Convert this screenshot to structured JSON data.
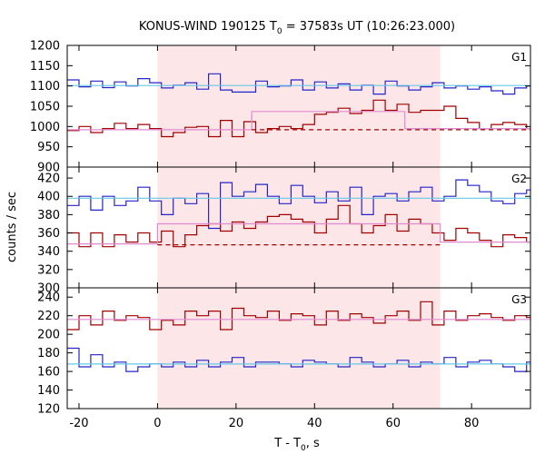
{
  "chart_data": {
    "type": "line",
    "title": "KONUS-WIND 190125 T",
    "title_sub": "0",
    "title_rest": " = 37583s UT (10:26:23.000)",
    "ylabel": "counts / sec",
    "xlabel_main": "T - T",
    "xlabel_sub": "0",
    "xlabel_unit": ", s",
    "xlim": [
      -23,
      95
    ],
    "x_ticks": [
      -20,
      0,
      20,
      40,
      60,
      80
    ],
    "x_tick_labels": [
      "-20",
      "0",
      "20",
      "40",
      "60",
      "80"
    ],
    "x_grid": false,
    "shaded_interval": [
      0,
      72
    ],
    "colors": {
      "shade": "#fde6e8",
      "blue": "#2424c8",
      "red": "#a00000",
      "cyan": "#64c8e6",
      "pink": "#e08ad0"
    },
    "bin_width": 3,
    "panels": [
      {
        "label": "G1",
        "ylim": [
          900,
          1200
        ],
        "y_ticks": [
          900,
          950,
          1000,
          1050,
          1100,
          1150,
          1200
        ],
        "y_tick_labels": [
          "900",
          "950",
          "1000",
          "1050",
          "1100",
          "1150",
          "1200"
        ],
        "series": [
          {
            "color": "blue",
            "x_start": -23,
            "values": [
              1115,
              1098,
              1112,
              1096,
              1110,
              1100,
              1118,
              1108,
              1095,
              1102,
              1108,
              1092,
              1130,
              1090,
              1085,
              1085,
              1112,
              1098,
              1100,
              1115,
              1090,
              1110,
              1095,
              1105,
              1090,
              1102,
              1080,
              1112,
              1100,
              1090,
              1098,
              1108,
              1095,
              1100,
              1092,
              1098,
              1088,
              1080,
              1095,
              1100,
              1100,
              1105
            ]
          },
          {
            "color": "red",
            "x_start": -23,
            "values": [
              990,
              1000,
              985,
              995,
              1008,
              995,
              1005,
              995,
              975,
              985,
              998,
              1000,
              975,
              1015,
              975,
              1012,
              985,
              995,
              1000,
              995,
              1005,
              1030,
              1035,
              1045,
              1032,
              1040,
              1065,
              1040,
              1055,
              1035,
              1040,
              1040,
              1050,
              1020,
              1010,
              995,
              1005,
              1010,
              1005,
              995,
              1015,
              1010,
              1020,
              1025,
              1030
            ]
          },
          {
            "color": "cyan",
            "x": [
              -23,
              95
            ],
            "y": [
              1101,
              1101
            ]
          },
          {
            "color": "pink",
            "style": "steps",
            "points": [
              [
                -23,
                992
              ],
              [
                24,
                992
              ],
              [
                24,
                1037
              ],
              [
                63,
                1037
              ],
              [
                63,
                995
              ],
              [
                95,
                995
              ]
            ]
          },
          {
            "color": "red",
            "style": "dashed",
            "x": [
              24,
              95
            ],
            "y": [
              992,
              992
            ]
          }
        ]
      },
      {
        "label": "G2",
        "ylim": [
          300,
          432
        ],
        "y_ticks": [
          300,
          320,
          340,
          360,
          380,
          400,
          420
        ],
        "y_tick_labels": [
          "300",
          "320",
          "340",
          "360",
          "380",
          "400",
          "420"
        ],
        "series": [
          {
            "color": "blue",
            "x_start": -23,
            "values": [
              390,
              400,
              385,
              400,
              390,
              395,
              410,
              395,
              380,
              398,
              392,
              403,
              365,
              415,
              400,
              405,
              413,
              400,
              392,
              412,
              400,
              393,
              405,
              395,
              410,
              380,
              400,
              403,
              395,
              405,
              410,
              395,
              400,
              418,
              412,
              405,
              395,
              392,
              403,
              407,
              405,
              395,
              372,
              405,
              398
            ]
          },
          {
            "color": "red",
            "x_start": -23,
            "values": [
              360,
              345,
              360,
              345,
              358,
              350,
              360,
              350,
              362,
              345,
              358,
              368,
              370,
              362,
              372,
              365,
              372,
              378,
              380,
              375,
              372,
              360,
              375,
              390,
              370,
              360,
              368,
              380,
              362,
              375,
              370,
              360,
              352,
              365,
              360,
              352,
              345,
              358,
              355,
              350,
              362,
              348,
              355,
              340,
              345
            ]
          },
          {
            "color": "cyan",
            "x": [
              -23,
              95
            ],
            "y": [
              398,
              398
            ]
          },
          {
            "color": "pink",
            "style": "steps",
            "points": [
              [
                -23,
                348
              ],
              [
                0,
                348
              ],
              [
                0,
                370
              ],
              [
                72,
                370
              ],
              [
                72,
                350
              ],
              [
                95,
                350
              ]
            ]
          },
          {
            "color": "red",
            "style": "dashed",
            "x": [
              0,
              72
            ],
            "y": [
              347,
              347
            ]
          }
        ]
      },
      {
        "label": "G3",
        "ylim": [
          120,
          250
        ],
        "y_ticks": [
          120,
          140,
          160,
          180,
          200,
          220,
          240
        ],
        "y_tick_labels": [
          "120",
          "140",
          "160",
          "180",
          "200",
          "220",
          "240"
        ],
        "series": [
          {
            "color": "blue",
            "x_start": -23,
            "values": [
              185,
              165,
              178,
              165,
              170,
              160,
              165,
              168,
              165,
              170,
              165,
              172,
              165,
              170,
              175,
              165,
              170,
              170,
              168,
              165,
              172,
              170,
              168,
              165,
              175,
              170,
              165,
              168,
              172,
              165,
              170,
              168,
              175,
              165,
              170,
              172,
              168,
              165,
              160,
              170,
              165,
              175,
              165,
              165,
              170
            ]
          },
          {
            "color": "red",
            "x_start": -23,
            "values": [
              205,
              220,
              210,
              225,
              215,
              220,
              218,
              205,
              215,
              210,
              225,
              220,
              225,
              205,
              228,
              220,
              218,
              225,
              215,
              222,
              220,
              210,
              225,
              215,
              222,
              218,
              212,
              220,
              225,
              215,
              235,
              210,
              225,
              215,
              220,
              222,
              218,
              215,
              220,
              218,
              212,
              225,
              215,
              220,
              205
            ]
          },
          {
            "color": "pink",
            "x": [
              -23,
              95
            ],
            "y": [
              216,
              216
            ]
          },
          {
            "color": "cyan",
            "x": [
              -23,
              95
            ],
            "y": [
              168,
              168
            ]
          }
        ]
      }
    ]
  }
}
